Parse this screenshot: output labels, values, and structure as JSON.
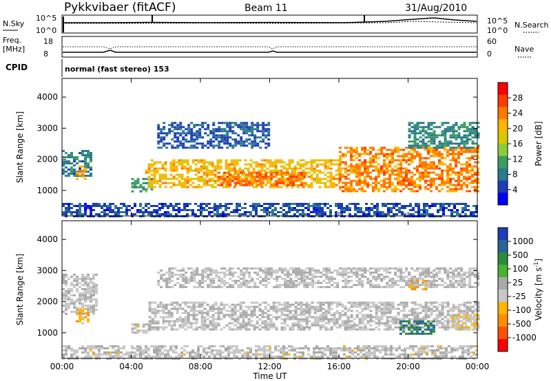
{
  "header": {
    "station": "Pykkvibaer (fitACF)",
    "beam": "Beam 11",
    "date": "31/Aug/2010"
  },
  "noise_panel": {
    "left_label": "N.Sky",
    "right_label": "N.Search",
    "left_ticks": [
      "10^5",
      "10^0"
    ],
    "right_ticks": [
      "10^5",
      "10^0"
    ]
  },
  "freq_panel": {
    "left_label_line1": "Freq.",
    "left_label_line2": "[MHz]",
    "right_label": "Nave",
    "left_ticks": [
      "18",
      "8"
    ],
    "right_ticks": [
      "60",
      "0"
    ]
  },
  "cpid": {
    "label": "CPID",
    "value": "normal (fast stereo) 153"
  },
  "colorbars": {
    "power": {
      "label": "Power [dB]",
      "ticks": [
        "28",
        "24",
        "20",
        "16",
        "12",
        "8",
        "4"
      ],
      "colors": [
        "#ff0000",
        "#ff3c00",
        "#ff7800",
        "#ffb400",
        "#d7c800",
        "#8ccc3c",
        "#3c9c64",
        "#2a7a8c",
        "#1e3cb4",
        "#0000ff"
      ]
    },
    "velocity": {
      "label": "Velocity [m s",
      "label_sup": "-1",
      "label_end": "]",
      "ticks": [
        "1000",
        "500",
        "100",
        "25",
        "-25",
        "-100",
        "-500",
        "-1000"
      ],
      "colors": [
        "#1e3cb4",
        "#286496",
        "#2d8c3c",
        "#46b432",
        "#aaaaaa",
        "#c8c8c8",
        "#ffb400",
        "#ff8c00",
        "#ff5000",
        "#ff0000"
      ]
    }
  },
  "chart_data": {
    "type": "heatmap",
    "xlabel": "Time UT",
    "ylabel": "Slant Range [km]",
    "x_ticks": [
      "00:00",
      "04:00",
      "08:00",
      "12:00",
      "16:00",
      "20:00",
      "00:00"
    ],
    "y_ticks": [
      "4000",
      "3000",
      "2000",
      "1000"
    ],
    "xlim_hours": [
      0,
      24
    ],
    "ylim_km": [
      180,
      4600
    ],
    "panels": [
      {
        "name": "power",
        "unit": "dB",
        "range": [
          0,
          30
        ],
        "blobs": [
          {
            "t": [
              0.0,
              1.6
            ],
            "r": [
              1500,
              2300
            ],
            "v": 8
          },
          {
            "t": [
              0.8,
              1.3
            ],
            "r": [
              1400,
              1800
            ],
            "v": 20
          },
          {
            "t": [
              4.0,
              5.2
            ],
            "r": [
              1000,
              1400
            ],
            "v": 10
          },
          {
            "t": [
              4.8,
              16.0
            ],
            "r": [
              1100,
              2000
            ],
            "v": 19
          },
          {
            "t": [
              9.0,
              14.0
            ],
            "r": [
              1200,
              1600
            ],
            "v": 23
          },
          {
            "t": [
              16.0,
              24.0
            ],
            "r": [
              1000,
              2400
            ],
            "v": 22
          },
          {
            "t": [
              20.0,
              24.0
            ],
            "r": [
              2400,
              3200
            ],
            "v": 9
          },
          {
            "t": [
              5.5,
              12.0
            ],
            "r": [
              2400,
              3200
            ],
            "v": 6
          },
          {
            "t": [
              0.0,
              24.0
            ],
            "r": [
              200,
              600
            ],
            "v": 5
          }
        ]
      },
      {
        "name": "velocity",
        "unit": "m/s",
        "range": [
          -1000,
          1000
        ],
        "blobs": [
          {
            "t": [
              0.0,
              2.0
            ],
            "r": [
              1600,
              2900
            ],
            "v": 20
          },
          {
            "t": [
              0.8,
              1.5
            ],
            "r": [
              1300,
              1800
            ],
            "v": -300
          },
          {
            "t": [
              4.0,
              5.0
            ],
            "r": [
              1000,
              1300
            ],
            "v": -60
          },
          {
            "t": [
              5.0,
              16.5
            ],
            "r": [
              1100,
              2000
            ],
            "v": 0
          },
          {
            "t": [
              16.5,
              24.0
            ],
            "r": [
              1100,
              2000
            ],
            "v": 10
          },
          {
            "t": [
              19.5,
              21.5
            ],
            "r": [
              1000,
              1400
            ],
            "v": 600
          },
          {
            "t": [
              22.5,
              24.0
            ],
            "r": [
              1100,
              1600
            ],
            "v": -200
          },
          {
            "t": [
              20.0,
              21.0
            ],
            "r": [
              2400,
              2700
            ],
            "v": -400
          },
          {
            "t": [
              5.5,
              24.0
            ],
            "r": [
              2500,
              3100
            ],
            "v": 5
          },
          {
            "t": [
              0.0,
              24.0
            ],
            "r": [
              200,
              600
            ],
            "v": -40
          }
        ]
      }
    ]
  }
}
